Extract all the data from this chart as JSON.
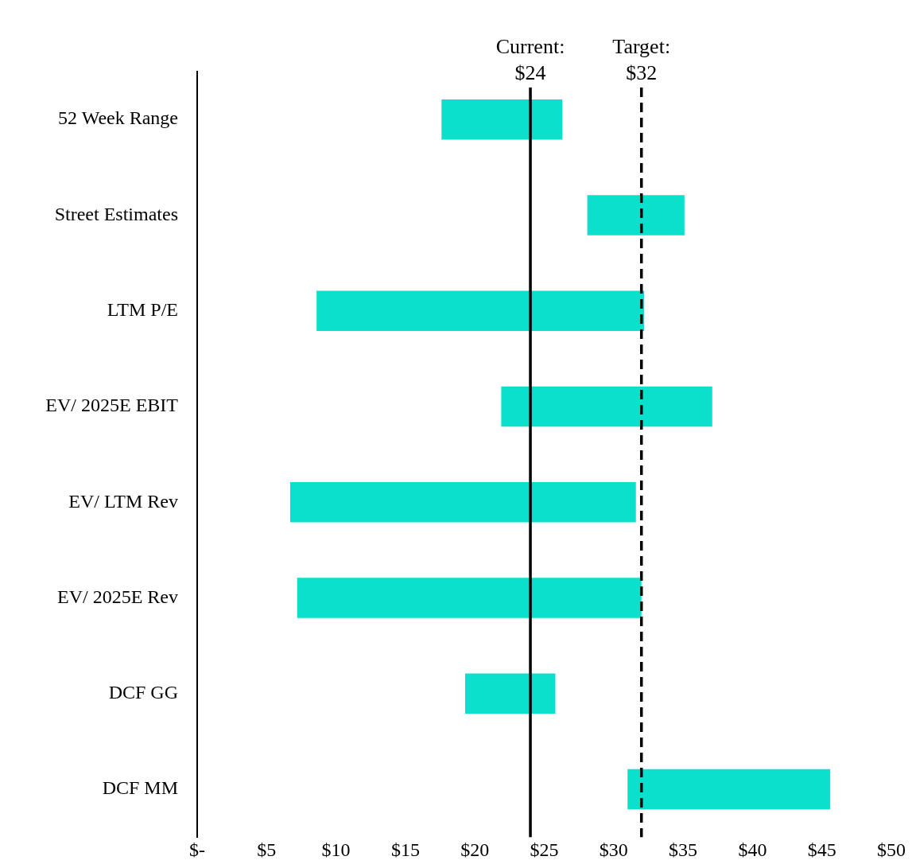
{
  "chart_data": {
    "type": "bar",
    "orientation": "horizontal",
    "categories": [
      "52 Week Range",
      "Street Estimates",
      "LTM P/E",
      "EV/ 2025E EBIT",
      "EV/ LTM Rev",
      "EV/ 2025E Rev",
      "DCF GG",
      "DCF MM"
    ],
    "base": [
      17.6,
      28.1,
      8.6,
      21.9,
      6.7,
      7.2,
      19.3,
      31.0
    ],
    "values": [
      8.7,
      7.0,
      23.6,
      15.2,
      24.9,
      24.8,
      6.5,
      14.6
    ],
    "color": "#0be0cc",
    "xlim": [
      0,
      50
    ],
    "xticks": [
      {
        "value": 0,
        "label": "$-"
      },
      {
        "value": 5,
        "label": "$5"
      },
      {
        "value": 10,
        "label": "$10"
      },
      {
        "value": 15,
        "label": "$15"
      },
      {
        "value": 20,
        "label": "$20"
      },
      {
        "value": 25,
        "label": "$25"
      },
      {
        "value": 30,
        "label": "$30"
      },
      {
        "value": 35,
        "label": "$35"
      },
      {
        "value": 40,
        "label": "$40"
      },
      {
        "value": 45,
        "label": "$45"
      },
      {
        "value": 50,
        "label": "$50"
      }
    ],
    "ref_lines": [
      {
        "axis": "x",
        "value": 24,
        "label": "Current:\n$24",
        "color": "#000000",
        "line_style": "solid"
      },
      {
        "axis": "x",
        "value": 32,
        "label": "Target:\n$32",
        "color": "#000000",
        "line_style": "dashed"
      }
    ],
    "grid": false,
    "legend": false
  }
}
